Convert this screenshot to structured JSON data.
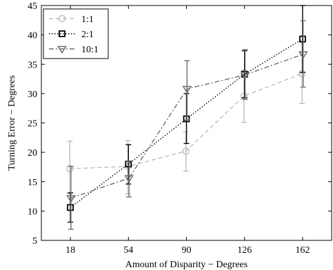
{
  "chart_data": {
    "type": "line",
    "title": "",
    "xlabel": "Amount of Disparity − Degrees",
    "ylabel": "Turning Error − Degrees",
    "x": [
      18,
      54,
      90,
      126,
      162
    ],
    "x_ticks": [
      "18",
      "54",
      "90",
      "126",
      "162"
    ],
    "xlim": [
      0,
      180
    ],
    "ylim": [
      5,
      45
    ],
    "y_ticks": [
      "5",
      "10",
      "15",
      "20",
      "25",
      "30",
      "35",
      "40",
      "45"
    ],
    "legend_position": "top-left",
    "grid": false,
    "series": [
      {
        "name": "1:1",
        "values": [
          17.2,
          17.6,
          20.2,
          29.6,
          33.4
        ],
        "error_low": [
          13.0,
          12.9,
          16.8,
          25.1,
          28.3
        ],
        "error_high": [
          21.9,
          22.0,
          23.5,
          34.0,
          38.7
        ],
        "color": "#bdbdbd",
        "line_style": "dashed",
        "marker": "circle"
      },
      {
        "name": "2:1",
        "values": [
          10.6,
          18.0,
          25.7,
          33.3,
          39.3
        ],
        "error_low": [
          8.1,
          14.6,
          21.5,
          29.3,
          33.6
        ],
        "error_high": [
          13.1,
          21.3,
          30.0,
          37.3,
          45.0
        ],
        "color": "#000000",
        "line_style": "dotted",
        "marker": "square"
      },
      {
        "name": "10:1",
        "values": [
          12.2,
          15.6,
          30.8,
          33.2,
          36.7
        ],
        "error_low": [
          6.9,
          12.4,
          25.5,
          29.0,
          31.1
        ],
        "error_high": [
          17.6,
          18.5,
          35.6,
          37.5,
          42.4
        ],
        "color": "#6e6e6e",
        "line_style": "dashdot",
        "marker": "triangle-down"
      }
    ]
  }
}
